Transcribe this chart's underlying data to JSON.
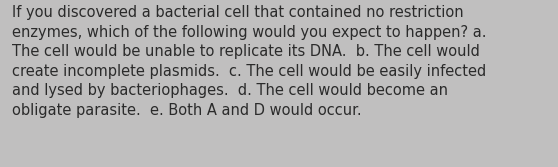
{
  "lines": [
    "If you discovered a bacterial cell that contained no restriction",
    "enzymes, which of the following would you expect to happen? a.",
    "The cell would be unable to replicate its DNA.  b. The cell would",
    "create incomplete plasmids.  c. The cell would be easily infected",
    "and lysed by bacteriophages.  d. The cell would become an",
    "obligate parasite.  e. Both A and D would occur."
  ],
  "background_color": "#c0bfbf",
  "text_color": "#2b2b2b",
  "font_size": 10.5,
  "font_family": "DejaVu Sans",
  "fig_width": 5.58,
  "fig_height": 1.67,
  "dpi": 100
}
